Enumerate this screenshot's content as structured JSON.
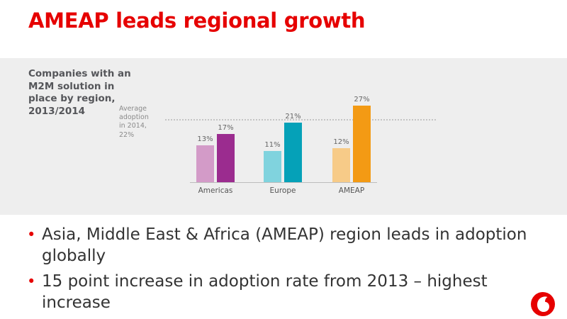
{
  "slide": {
    "title": "AMEAP leads regional growth"
  },
  "chart_data": {
    "type": "bar",
    "title": "Companies with an M2M solution in place by region, 2013/2014",
    "subtitle_lines": [
      "Companies with an",
      "M2M solution in",
      "place by region,",
      "2013/2014"
    ],
    "categories": [
      "Americas",
      "Europe",
      "AMEAP"
    ],
    "series": [
      {
        "values": [
          13,
          11,
          12
        ],
        "colors": [
          "#d39bc8",
          "#80d3de",
          "#f7cb88"
        ]
      },
      {
        "values": [
          17,
          21,
          27
        ],
        "colors": [
          "#9b2c8f",
          "#05a1b8",
          "#f39a14"
        ]
      }
    ],
    "value_labels": [
      [
        "13%",
        "11%",
        "12%"
      ],
      [
        "17%",
        "21%",
        "27%"
      ]
    ],
    "reference_line": {
      "value": 22,
      "label_lines": [
        "Average",
        "adoption",
        "in 2014,",
        "22%"
      ]
    },
    "ylim": [
      0,
      30
    ],
    "grid": false,
    "legend": "none"
  },
  "bullets": [
    {
      "text": "Asia, Middle East & Africa (AMEAP) region leads in adoption globally"
    },
    {
      "text": "15 point increase in adoption rate from 2013 – highest increase"
    }
  ],
  "colors": {
    "accent": "#e60000",
    "panel": "#eeeeee",
    "text": "#333333"
  },
  "logo": {
    "icon": "vodafone-logo-icon"
  }
}
